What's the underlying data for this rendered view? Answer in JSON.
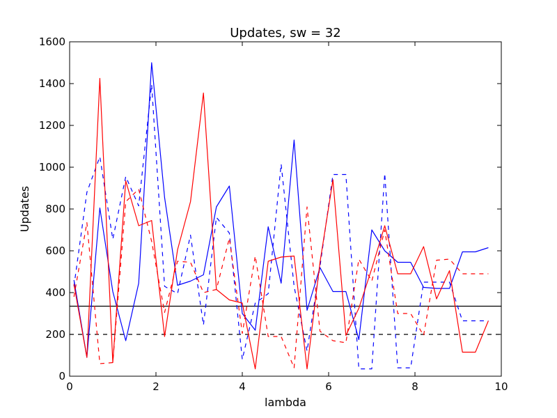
{
  "chart_data": {
    "type": "line",
    "title": "Updates, sw = 32",
    "xlabel": "lambda",
    "ylabel": "Updates",
    "xlim": [
      0,
      10
    ],
    "ylim": [
      0,
      1600
    ],
    "xticks": [
      0,
      2,
      4,
      6,
      8,
      10
    ],
    "yticks": [
      0,
      200,
      400,
      600,
      800,
      1000,
      1200,
      1400,
      1600
    ],
    "xtick_labels": [
      "0",
      "2",
      "4",
      "6",
      "8",
      "10"
    ],
    "ytick_labels": [
      "0",
      "200",
      "400",
      "600",
      "800",
      "1000",
      "1200",
      "1400",
      "1600"
    ],
    "grid": false,
    "legend": "none",
    "series": [
      {
        "color": "#0000ff",
        "dash": "solid",
        "x": [
          0.1,
          0.4,
          0.7,
          1.0,
          1.3,
          1.6,
          1.9,
          2.2,
          2.5,
          2.8,
          3.1,
          3.4,
          3.7,
          4.0,
          4.3,
          4.6,
          4.9,
          5.2,
          5.5,
          5.8,
          6.1,
          6.4,
          6.7,
          7.0,
          7.3,
          7.6,
          7.9,
          8.2,
          8.5,
          8.8,
          9.1,
          9.4,
          9.7
        ],
        "y": [
          460,
          90,
          805,
          405,
          170,
          445,
          1500,
          855,
          435,
          455,
          485,
          810,
          910,
          300,
          220,
          715,
          445,
          1130,
          315,
          520,
          405,
          405,
          175,
          700,
          600,
          545,
          545,
          425,
          420,
          420,
          595,
          595,
          615
        ]
      },
      {
        "color": "#0000ff",
        "dash": "dashed",
        "x": [
          0.1,
          0.4,
          0.7,
          1.0,
          1.3,
          1.6,
          1.9,
          2.2,
          2.5,
          2.8,
          3.1,
          3.4,
          3.7,
          4.0,
          4.3,
          4.6,
          4.9,
          5.2,
          5.5,
          5.8,
          6.1,
          6.4,
          6.7,
          7.0,
          7.3,
          7.6,
          7.9,
          8.2,
          8.5,
          8.8,
          9.1,
          9.4,
          9.7
        ],
        "y": [
          430,
          880,
          1050,
          655,
          955,
          815,
          1395,
          430,
          395,
          675,
          245,
          760,
          685,
          80,
          350,
          395,
          1015,
          430,
          120,
          525,
          965,
          965,
          35,
          35,
          970,
          40,
          40,
          450,
          450,
          450,
          265,
          265,
          265
        ]
      },
      {
        "color": "#ff0000",
        "dash": "solid",
        "x": [
          0.1,
          0.4,
          0.7,
          1.0,
          1.3,
          1.6,
          1.9,
          2.2,
          2.5,
          2.8,
          3.1,
          3.4,
          3.7,
          4.0,
          4.3,
          4.6,
          4.9,
          5.2,
          5.5,
          5.8,
          6.1,
          6.4,
          6.7,
          7.0,
          7.3,
          7.6,
          7.9,
          8.2,
          8.5,
          8.8,
          9.1,
          9.4,
          9.7
        ],
        "y": [
          440,
          90,
          1425,
          65,
          935,
          720,
          745,
          190,
          605,
          835,
          1355,
          415,
          365,
          350,
          35,
          550,
          570,
          575,
          35,
          545,
          940,
          195,
          325,
          515,
          720,
          490,
          490,
          620,
          370,
          505,
          115,
          115,
          265
        ]
      },
      {
        "color": "#ff0000",
        "dash": "dashed",
        "x": [
          0.1,
          0.4,
          0.7,
          1.0,
          1.3,
          1.6,
          1.9,
          2.2,
          2.5,
          2.8,
          3.1,
          3.4,
          3.7,
          4.0,
          4.3,
          4.6,
          4.9,
          5.2,
          5.5,
          5.8,
          6.1,
          6.4,
          6.7,
          7.0,
          7.3,
          7.6,
          7.9,
          8.2,
          8.5,
          8.8,
          9.1,
          9.4,
          9.7
        ],
        "y": [
          380,
          735,
          60,
          65,
          835,
          895,
          645,
          305,
          550,
          545,
          400,
          415,
          660,
          205,
          575,
          190,
          190,
          40,
          810,
          215,
          170,
          160,
          560,
          455,
          700,
          300,
          300,
          195,
          555,
          560,
          490,
          490,
          490
        ]
      }
    ],
    "reference_lines": [
      {
        "y": 335,
        "color": "#000000",
        "dash": "solid"
      },
      {
        "y": 200,
        "color": "#000000",
        "dash": "dashed"
      }
    ]
  }
}
